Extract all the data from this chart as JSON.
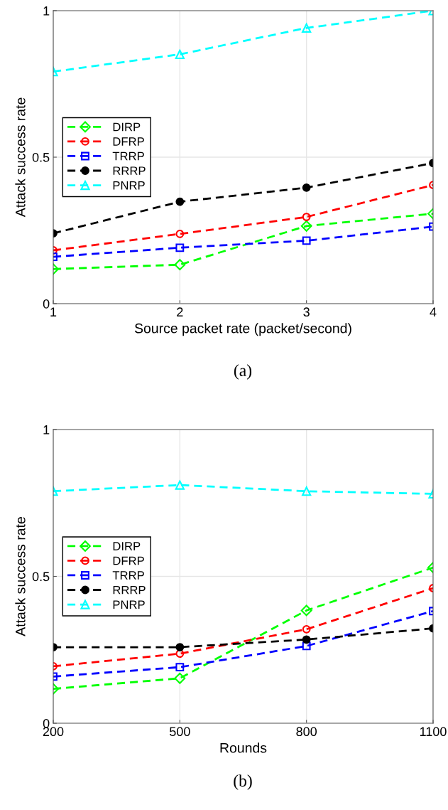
{
  "chart_data": [
    {
      "type": "line",
      "xlabel": "Source packet rate (packet/second)",
      "ylabel": "Attack success rate",
      "x": [
        1,
        2,
        3,
        4
      ],
      "xlim": [
        1,
        4
      ],
      "xticks": [
        1,
        2,
        3,
        4
      ],
      "ylim": [
        0,
        1
      ],
      "yticks": [
        0,
        0.5,
        1
      ],
      "grid": true,
      "legend": "left",
      "line_style": "dashed",
      "annotations": [
        "(a)"
      ],
      "series": [
        {
          "name": "DIRP",
          "color": "#00ff00",
          "marker": "diamond",
          "values": [
            0.118,
            0.133,
            0.265,
            0.307
          ]
        },
        {
          "name": "DFRP",
          "color": "#ff0000",
          "marker": "circle",
          "values": [
            0.182,
            0.238,
            0.296,
            0.405
          ]
        },
        {
          "name": "TRRP",
          "color": "#0000ff",
          "marker": "square",
          "values": [
            0.16,
            0.191,
            0.215,
            0.263
          ]
        },
        {
          "name": "RRRP",
          "color": "#000000",
          "marker": "circle_filled",
          "values": [
            0.24,
            0.348,
            0.396,
            0.48
          ]
        },
        {
          "name": "PNRP",
          "color": "#00ffff",
          "marker": "triangle",
          "values": [
            0.792,
            0.851,
            0.941,
            1.0
          ]
        }
      ]
    },
    {
      "type": "line",
      "xlabel": "Rounds",
      "ylabel": "Attack success rate",
      "x": [
        200,
        500,
        800,
        1100
      ],
      "xlim": [
        200,
        1100
      ],
      "xticks": [
        200,
        500,
        800,
        1100
      ],
      "ylim": [
        0,
        1
      ],
      "yticks": [
        0,
        0.5,
        1
      ],
      "grid": true,
      "legend": "left",
      "line_style": "dashed",
      "annotations": [
        "(b)"
      ],
      "series": [
        {
          "name": "DIRP",
          "color": "#00ff00",
          "marker": "diamond",
          "values": [
            0.117,
            0.153,
            0.384,
            0.53
          ]
        },
        {
          "name": "DFRP",
          "color": "#ff0000",
          "marker": "circle",
          "values": [
            0.194,
            0.237,
            0.32,
            0.46
          ]
        },
        {
          "name": "TRRP",
          "color": "#0000ff",
          "marker": "square",
          "values": [
            0.159,
            0.191,
            0.263,
            0.382
          ]
        },
        {
          "name": "RRRP",
          "color": "#000000",
          "marker": "circle_filled",
          "values": [
            0.259,
            0.259,
            0.285,
            0.323
          ]
        },
        {
          "name": "PNRP",
          "color": "#00ffff",
          "marker": "triangle",
          "values": [
            0.79,
            0.811,
            0.79,
            0.781
          ]
        }
      ]
    }
  ]
}
